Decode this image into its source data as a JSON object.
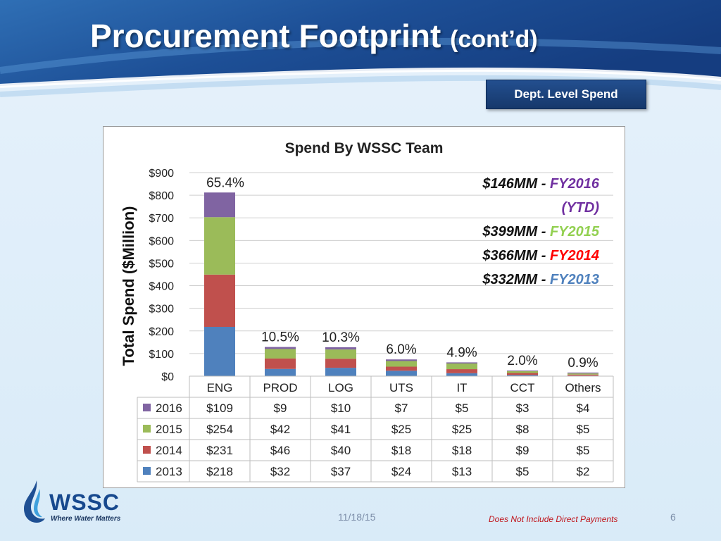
{
  "slide": {
    "title": "Procurement Footprint",
    "title_suffix": "(cont’d)",
    "dept_box": "Dept. Level Spend",
    "date": "11/18/15",
    "footnote": "Does Not Include Direct Payments",
    "page_number": "6",
    "logo": {
      "name": "WSSC",
      "tagline": "Where Water Matters"
    }
  },
  "chart_data": {
    "type": "bar",
    "stacked": true,
    "title": "Spend By WSSC Team",
    "ylabel": "Total Spend  ($Million)",
    "ylim": [
      0,
      900
    ],
    "yticks": [
      "$0",
      "$100",
      "$200",
      "$300",
      "$400",
      "$500",
      "$600",
      "$700",
      "$800",
      "$900"
    ],
    "grid": true,
    "categories": [
      "ENG",
      "PROD",
      "LOG",
      "UTS",
      "IT",
      "CCT",
      "Others"
    ],
    "percent_labels": [
      "65.4%",
      "10.5%",
      "10.3%",
      "6.0%",
      "4.9%",
      "2.0%",
      "0.9%"
    ],
    "series": [
      {
        "name": "2013",
        "color": "#4f81bd",
        "values": [
          218,
          32,
          37,
          24,
          13,
          5,
          2
        ],
        "labels": [
          "$218",
          "$32",
          "$37",
          "$24",
          "$13",
          "$5",
          "$2"
        ]
      },
      {
        "name": "2014",
        "color": "#c0504d",
        "values": [
          231,
          46,
          40,
          18,
          18,
          9,
          5
        ],
        "labels": [
          "$231",
          "$46",
          "$40",
          "$18",
          "$18",
          "$9",
          "$5"
        ]
      },
      {
        "name": "2015",
        "color": "#9bbb59",
        "values": [
          254,
          42,
          41,
          25,
          25,
          8,
          5
        ],
        "labels": [
          "$254",
          "$42",
          "$41",
          "$25",
          "$25",
          "$8",
          "$5"
        ]
      },
      {
        "name": "2016",
        "color": "#8064a2",
        "values": [
          109,
          9,
          10,
          7,
          5,
          3,
          4
        ],
        "labels": [
          "$109",
          "$9",
          "$10",
          "$7",
          "$5",
          "$3",
          "$4"
        ]
      }
    ],
    "annotations": [
      {
        "amount": "$146MM",
        "dash": " - ",
        "fy": "FY2016",
        "color": "#7030a0"
      },
      {
        "amount": "",
        "dash": "",
        "fy": "(YTD)",
        "color": "#7030a0"
      },
      {
        "amount": "$399MM",
        "dash": " - ",
        "fy": "FY2015",
        "color": "#92d050"
      },
      {
        "amount": "$366MM",
        "dash": " - ",
        "fy": "FY2014",
        "color": "#ff0000"
      },
      {
        "amount": "$332MM",
        "dash": " - ",
        "fy": "FY2013",
        "color": "#4f81bd"
      }
    ]
  }
}
